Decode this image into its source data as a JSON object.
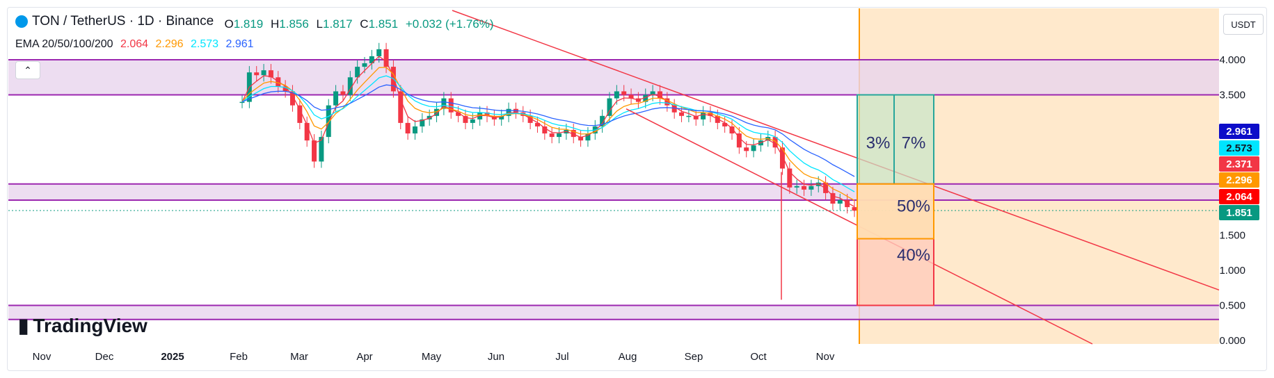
{
  "header": {
    "symbol_title": "TON / TetherUS · 1D · Binance",
    "open_label": "O",
    "open": "1.819",
    "high_label": "H",
    "high": "1.856",
    "low_label": "L",
    "low": "1.817",
    "close_label": "C",
    "close": "1.851",
    "change": "+0.032 (+1.76%)"
  },
  "ema_legend": {
    "label": "EMA 20/50/100/200",
    "ema20": "2.064",
    "ema50": "2.296",
    "ema100": "2.573",
    "ema200": "2.961"
  },
  "currency": "USDT",
  "logo_text": "TradingView",
  "colors": {
    "up": "#089981",
    "down": "#f23645",
    "ema20": "#f23645",
    "ema50": "#ff9800",
    "ema100": "#00e5ff",
    "ema200": "#2962ff",
    "zone_fill": "#e8d4ee",
    "zone_line": "#9c27b0",
    "future_fill": "#ffe9cc",
    "vline": "#ff9800",
    "trendline": "#f23645"
  },
  "chart_data": {
    "type": "candlestick",
    "x_ticks": [
      "Nov",
      "Dec",
      "2025",
      "Feb",
      "Mar",
      "Apr",
      "May",
      "Jun",
      "Jul",
      "Aug",
      "Sep",
      "Oct",
      "Nov"
    ],
    "y_ticks": [
      "4.000",
      "3.500",
      "1.500",
      "1.000",
      "0.500",
      "0.000"
    ],
    "ylim": [
      0,
      4.5
    ],
    "price_labels": [
      {
        "value": 2.961,
        "text": "2.961",
        "color": "#0d0dc9"
      },
      {
        "value": 2.573,
        "text": "2.573",
        "color": "#00e5ff"
      },
      {
        "value": 2.371,
        "text": "2.371",
        "color": "#f23645"
      },
      {
        "value": 2.296,
        "text": "2.296",
        "color": "#ff9800"
      },
      {
        "value": 2.064,
        "text": "2.064",
        "color": "#ff0000"
      },
      {
        "value": 1.851,
        "text": "1.851",
        "color": "#089981"
      }
    ],
    "current_price": 1.851,
    "resistance_zones": [
      [
        3.5,
        4.0
      ],
      [
        2.0,
        2.23
      ],
      [
        0.3,
        0.5
      ]
    ],
    "close_series": [
      3.4,
      3.82,
      3.78,
      3.85,
      3.75,
      3.62,
      3.55,
      3.35,
      3.1,
      2.85,
      2.55,
      2.9,
      3.35,
      3.55,
      3.5,
      3.75,
      3.9,
      3.95,
      4.05,
      4.15,
      3.9,
      3.55,
      3.1,
      2.95,
      3.05,
      3.15,
      3.2,
      3.3,
      3.45,
      3.25,
      3.2,
      3.1,
      3.15,
      3.25,
      3.2,
      3.15,
      3.2,
      3.3,
      3.25,
      3.2,
      3.1,
      3.05,
      2.95,
      2.9,
      2.95,
      3.0,
      2.9,
      2.85,
      2.95,
      3.05,
      3.2,
      3.45,
      3.55,
      3.5,
      3.45,
      3.4,
      3.5,
      3.55,
      3.45,
      3.35,
      3.25,
      3.2,
      3.2,
      3.15,
      3.25,
      3.2,
      3.1,
      3.05,
      2.95,
      2.75,
      2.7,
      2.78,
      2.85,
      2.9,
      2.75,
      2.45,
      2.18,
      2.2,
      2.15,
      2.2,
      2.25,
      2.1,
      1.95,
      2.0,
      1.9,
      1.85
    ],
    "percent_labels": [
      "3%",
      "7%",
      "50%",
      "40%"
    ]
  }
}
